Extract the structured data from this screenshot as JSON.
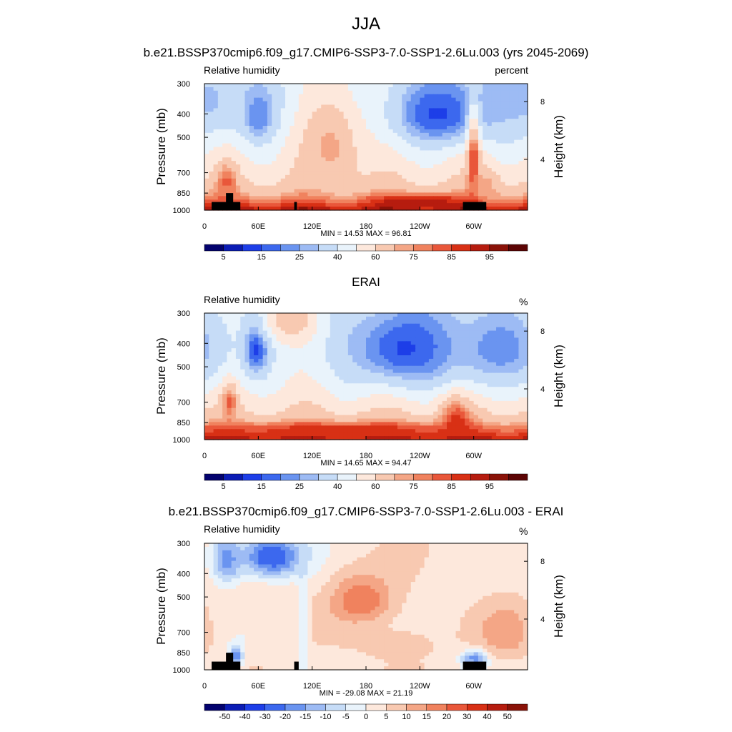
{
  "figure": {
    "title": "JJA"
  },
  "chart_data": [
    {
      "type": "heatmap",
      "title": "b.e21.BSSP370cmip6.f09_g17.CMIP6-SSP3-7.0-SSP1-2.6Lu.003 (yrs 2045-2069)",
      "variable": "Relative humidity",
      "units": "percent",
      "ylabel": "Pressure (mb)",
      "y2label": "Height (km)",
      "x_ticks": [
        "0",
        "60E",
        "120E",
        "180",
        "120W",
        "60W"
      ],
      "y_ticks": [
        "300",
        "400",
        "500",
        "700",
        "850",
        "1000"
      ],
      "y2_ticks": [
        "8",
        "4"
      ],
      "stats": "MIN =  14.53  MAX =  96.81",
      "colorbar_labels": [
        "5",
        "15",
        "25",
        "40",
        "60",
        "75",
        "85",
        "95"
      ],
      "colorbar_colors": [
        "#03026e",
        "#0b1cb5",
        "#1d3ee8",
        "#3c68ee",
        "#6a94f0",
        "#9dbbf4",
        "#c6dcf7",
        "#e9f3fb",
        "#fde8dc",
        "#f8c9b1",
        "#f4a686",
        "#f0825e",
        "#e9573a",
        "#d83015",
        "#b61c0f",
        "#8a1208",
        "#5c0404"
      ],
      "blobs": [
        {
          "lon": 60,
          "p": 400,
          "sx": 12,
          "sy": 70,
          "v": 12
        },
        {
          "lon": 345,
          "p": 350,
          "sx": 70,
          "sy": 100,
          "v": 28
        },
        {
          "lon": 260,
          "p": 400,
          "sx": 35,
          "sy": 90,
          "v": 14
        },
        {
          "lon": 140,
          "p": 550,
          "sx": 25,
          "sy": 180,
          "v": 72
        },
        {
          "lon": 300,
          "p": 650,
          "sx": 5,
          "sy": 180,
          "v": 88
        },
        {
          "lon": 315,
          "p": 800,
          "sx": 10,
          "sy": 90,
          "v": 72
        },
        {
          "lon": 25,
          "p": 760,
          "sx": 8,
          "sy": 90,
          "v": 82
        },
        {
          "lon": 240,
          "p": 920,
          "sx": 35,
          "sy": 40,
          "v": 94
        }
      ],
      "masks": [
        {
          "lon0": 8,
          "lon1": 40,
          "p_top": 925
        },
        {
          "lon0": 24,
          "lon1": 32,
          "p_top": 850
        },
        {
          "lon0": 100,
          "lon1": 103,
          "p_top": 925
        },
        {
          "lon0": 288,
          "lon1": 314,
          "p_top": 925
        }
      ]
    },
    {
      "type": "heatmap",
      "title": "ERAI",
      "variable": "Relative humidity",
      "units": "%",
      "ylabel": "Pressure (mb)",
      "y2label": "Height (km)",
      "x_ticks": [
        "0",
        "60E",
        "120E",
        "180",
        "120W",
        "60W"
      ],
      "y_ticks": [
        "300",
        "400",
        "500",
        "700",
        "850",
        "1000"
      ],
      "y2_ticks": [
        "8",
        "4"
      ],
      "stats": "MIN =  14.65  MAX =  94.47",
      "colorbar_labels": [
        "5",
        "15",
        "25",
        "40",
        "60",
        "75",
        "85",
        "95"
      ],
      "colorbar_colors": [
        "#03026e",
        "#0b1cb5",
        "#1d3ee8",
        "#3c68ee",
        "#6a94f0",
        "#9dbbf4",
        "#c6dcf7",
        "#e9f3fb",
        "#fde8dc",
        "#f8c9b1",
        "#f4a686",
        "#f0825e",
        "#e9573a",
        "#d83015",
        "#b61c0f",
        "#8a1208",
        "#5c0404"
      ],
      "blobs": [
        {
          "lon": 58,
          "p": 420,
          "sx": 10,
          "sy": 80,
          "v": 12
        },
        {
          "lon": 225,
          "p": 420,
          "sx": 50,
          "sy": 130,
          "v": 14
        },
        {
          "lon": 330,
          "p": 420,
          "sx": 40,
          "sy": 120,
          "v": 22
        },
        {
          "lon": 95,
          "p": 320,
          "sx": 20,
          "sy": 50,
          "v": 68
        },
        {
          "lon": 28,
          "p": 700,
          "sx": 6,
          "sy": 80,
          "v": 82
        },
        {
          "lon": 280,
          "p": 850,
          "sx": 12,
          "sy": 120,
          "v": 88
        },
        {
          "lon": 150,
          "p": 920,
          "sx": 100,
          "sy": 50,
          "v": 88
        }
      ],
      "masks": []
    },
    {
      "type": "heatmap",
      "title": "b.e21.BSSP370cmip6.f09_g17.CMIP6-SSP3-7.0-SSP1-2.6Lu.003 - ERAI",
      "variable": "Relative humidity",
      "units": "%",
      "ylabel": "Pressure (mb)",
      "y2label": "Height (km)",
      "x_ticks": [
        "0",
        "60E",
        "120E",
        "180",
        "120W",
        "60W"
      ],
      "y_ticks": [
        "300",
        "400",
        "500",
        "700",
        "850",
        "1000"
      ],
      "y2_ticks": [
        "8",
        "4"
      ],
      "stats": "MIN = -29.08  MAX =  21.19",
      "colorbar_labels": [
        "-50",
        "-40",
        "-30",
        "-20",
        "-15",
        "-10",
        "-5",
        "0",
        "5",
        "10",
        "15",
        "20",
        "30",
        "40",
        "50"
      ],
      "colorbar_colors": [
        "#03026e",
        "#0b1cb5",
        "#1d3ee8",
        "#3c68ee",
        "#6a94f0",
        "#9dbbf4",
        "#c6dcf7",
        "#e9f3fb",
        "#fde8dc",
        "#f8c9b1",
        "#f4a686",
        "#f0825e",
        "#e9573a",
        "#d83015",
        "#b61c0f",
        "#8a1208"
      ],
      "blobs": [
        {
          "lon": 75,
          "p": 340,
          "sx": 25,
          "sy": 50,
          "v": -26
        },
        {
          "lon": 25,
          "p": 350,
          "sx": 12,
          "sy": 60,
          "v": -18
        },
        {
          "lon": 175,
          "p": 520,
          "sx": 25,
          "sy": 90,
          "v": 20
        },
        {
          "lon": 335,
          "p": 700,
          "sx": 20,
          "sy": 120,
          "v": 15
        },
        {
          "lon": 300,
          "p": 900,
          "sx": 10,
          "sy": 50,
          "v": -18
        },
        {
          "lon": 35,
          "p": 880,
          "sx": 6,
          "sy": 60,
          "v": -18
        },
        {
          "lon": 110,
          "p": 600,
          "sx": 4,
          "sy": 250,
          "v": -7
        },
        {
          "lon": 215,
          "p": 780,
          "sx": 40,
          "sy": 100,
          "v": 7
        }
      ],
      "masks": [
        {
          "lon0": 8,
          "lon1": 40,
          "p_top": 925
        },
        {
          "lon0": 24,
          "lon1": 32,
          "p_top": 850
        },
        {
          "lon0": 100,
          "lon1": 105,
          "p_top": 925
        },
        {
          "lon0": 288,
          "lon1": 314,
          "p_top": 925
        }
      ]
    }
  ]
}
